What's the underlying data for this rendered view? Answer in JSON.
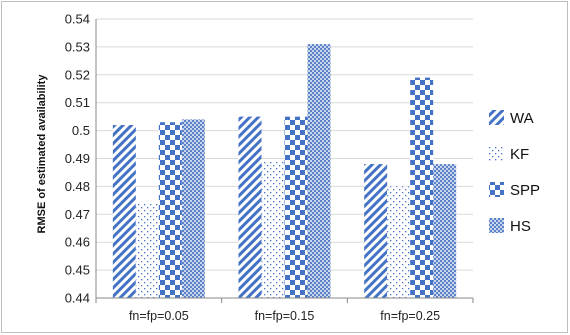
{
  "chart_data": {
    "type": "bar",
    "categories": [
      "fn=fp=0.05",
      "fn=fp=0.15",
      "fn=fp=0.25"
    ],
    "series": [
      {
        "name": "WA",
        "values": [
          0.502,
          0.505,
          0.488
        ],
        "pattern": "diagonal"
      },
      {
        "name": "KF",
        "values": [
          0.474,
          0.489,
          0.48
        ],
        "pattern": "dots"
      },
      {
        "name": "SPP",
        "values": [
          0.503,
          0.505,
          0.519
        ],
        "pattern": "checker"
      },
      {
        "name": "HS",
        "values": [
          0.504,
          0.531,
          0.488
        ],
        "pattern": "finecheck"
      }
    ],
    "ylabel": "RMSE of estimated availability",
    "xlabel": "",
    "ylim": [
      0.44,
      0.54
    ],
    "yticks": [
      "0.44",
      "0.45",
      "0.46",
      "0.47",
      "0.48",
      "0.49",
      "0.5",
      "0.51",
      "0.52",
      "0.53",
      "0.54"
    ],
    "grid": true,
    "legend_position": "right",
    "colors": {
      "accent": "#4472c4",
      "grid": "#d9d9d9",
      "axis": "#888888"
    }
  }
}
